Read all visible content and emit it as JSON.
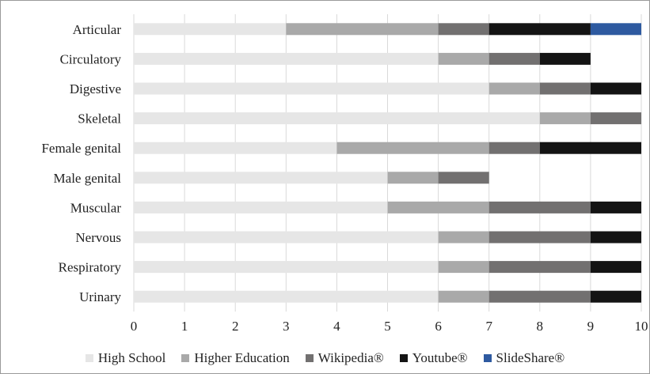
{
  "chart_data": {
    "type": "bar",
    "orientation": "horizontal",
    "stacked": true,
    "categories": [
      "Articular",
      "Circulatory",
      "Digestive",
      "Skeletal",
      "Female genital",
      "Male genital",
      "Muscular",
      "Nervous",
      "Respiratory",
      "Urinary"
    ],
    "series": [
      {
        "name": "High School",
        "color": "#e6e6e6",
        "values": [
          3,
          6,
          7,
          8,
          4,
          5,
          5,
          6,
          6,
          6
        ]
      },
      {
        "name": "Higher Education",
        "color": "#a9a9a9",
        "values": [
          3,
          1,
          1,
          1,
          3,
          1,
          2,
          1,
          1,
          1
        ]
      },
      {
        "name": "Wikipedia®",
        "color": "#727070",
        "values": [
          1,
          1,
          1,
          1,
          1,
          1,
          2,
          2,
          2,
          2
        ]
      },
      {
        "name": "Youtube®",
        "color": "#141414",
        "values": [
          2,
          1,
          1,
          0,
          2,
          0,
          1,
          1,
          1,
          1
        ]
      },
      {
        "name": "SlideShare®",
        "color": "#2e5aa0",
        "values": [
          1,
          0,
          0,
          0,
          0,
          0,
          0,
          0,
          0,
          0
        ]
      }
    ],
    "x_ticks": [
      "0",
      "1",
      "2",
      "3",
      "4",
      "5",
      "6",
      "7",
      "8",
      "9",
      "10"
    ],
    "xlim": [
      0,
      10
    ],
    "grid": "vertical",
    "legend_position": "bottom",
    "title": "",
    "xlabel": "",
    "ylabel": ""
  }
}
